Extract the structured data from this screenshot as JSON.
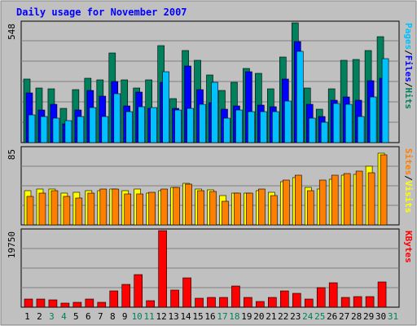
{
  "chart_data": {
    "type": "bar",
    "title": "Daily usage for November 2007",
    "categories": [
      "1",
      "2",
      "3",
      "4",
      "5",
      "6",
      "7",
      "8",
      "9",
      "10",
      "11",
      "12",
      "13",
      "14",
      "15",
      "16",
      "17",
      "18",
      "19",
      "20",
      "21",
      "22",
      "23",
      "24",
      "25",
      "26",
      "27",
      "28",
      "29",
      "30",
      "31"
    ],
    "weekend_days": [
      "3",
      "4",
      "10",
      "11",
      "17",
      "18",
      "24",
      "25",
      "31"
    ],
    "colors": {
      "title": "#0000ff",
      "background": "#c0c0c0",
      "grid": "#808080",
      "weekday_label": "#000000",
      "weekend_label": "#00805c",
      "hits": "#00805c",
      "files": "#0000ff",
      "pages": "#00c0ff",
      "visits": "#ffff00",
      "sites": "#ff8000",
      "kbytes": "#ff0000"
    },
    "panels": [
      {
        "id": "top",
        "max_label": "548",
        "ylim": [
          0,
          548
        ],
        "ylabel_parts": [
          "Pages",
          "/",
          "Files",
          "/",
          "Hits"
        ],
        "ylabel_colors": [
          "#00c0ff",
          "#000000",
          "#0000ff",
          "#000000",
          "#00805c"
        ],
        "series": [
          {
            "name": "Hits",
            "values": [
              290,
              250,
              246,
              155,
              241,
              293,
              287,
              409,
              288,
              250,
              288,
              443,
              200,
              422,
              378,
              310,
              240,
              274,
              340,
              317,
              245,
              390,
              548,
              249,
              154,
              247,
              378,
              382,
              422,
              485,
              0
            ]
          },
          {
            "name": "Files",
            "values": [
              226,
              148,
              177,
              85,
              148,
              240,
              213,
              278,
              169,
              232,
              157,
              275,
              158,
              351,
              243,
              182,
              151,
              169,
              325,
              173,
              163,
              290,
              462,
              176,
              118,
              195,
              208,
              194,
              284,
              295,
              0
            ]
          },
          {
            "name": "Pages",
            "values": [
              125,
              120,
              112,
              100,
              120,
              160,
              120,
              225,
              140,
              165,
              160,
              325,
              150,
              155,
              175,
              275,
              110,
              150,
              140,
              140,
              140,
              190,
              418,
              110,
              95,
              180,
              175,
              120,
              210,
              385,
              0
            ]
          }
        ]
      },
      {
        "id": "middle",
        "max_label": "85",
        "ylim": [
          0,
          85
        ],
        "ylabel_parts": [
          "Sites",
          "/",
          "Visits"
        ],
        "ylabel_colors": [
          "#ff8000",
          "#000000",
          "#ffff00"
        ],
        "series": [
          {
            "name": "Visits",
            "values": [
              38,
              40,
              40,
              35,
              36,
              38,
              38,
              40,
              38,
              40,
              35,
              38,
              42,
              46,
              40,
              39,
              33,
              35,
              35,
              38,
              36,
              48,
              52,
              42,
              40,
              51,
              55,
              56,
              65,
              80,
              0
            ]
          },
          {
            "name": "Sites",
            "values": [
              32,
              35,
              38,
              32,
              30,
              35,
              40,
              40,
              34,
              34,
              36,
              40,
              42,
              45,
              38,
              37,
              26,
              35,
              35,
              40,
              33,
              50,
              55,
              38,
              50,
              55,
              57,
              60,
              58,
              78,
              0
            ]
          }
        ]
      },
      {
        "id": "bottom",
        "max_label": "19750",
        "ylim": [
          0,
          19750
        ],
        "ylabel_parts": [
          "KBytes"
        ],
        "ylabel_colors": [
          "#ff0000"
        ],
        "series": [
          {
            "name": "KBytes",
            "values": [
              2100,
              2100,
              1800,
              1100,
              1200,
              2100,
              1300,
              4200,
              5800,
              8400,
              1600,
              19750,
              4400,
              7500,
              2400,
              2500,
              2600,
              5400,
              2600,
              1500,
              2500,
              4200,
              3500,
              2200,
              5000,
              6200,
              2500,
              2800,
              2700,
              6600,
              0
            ]
          }
        ]
      }
    ]
  }
}
